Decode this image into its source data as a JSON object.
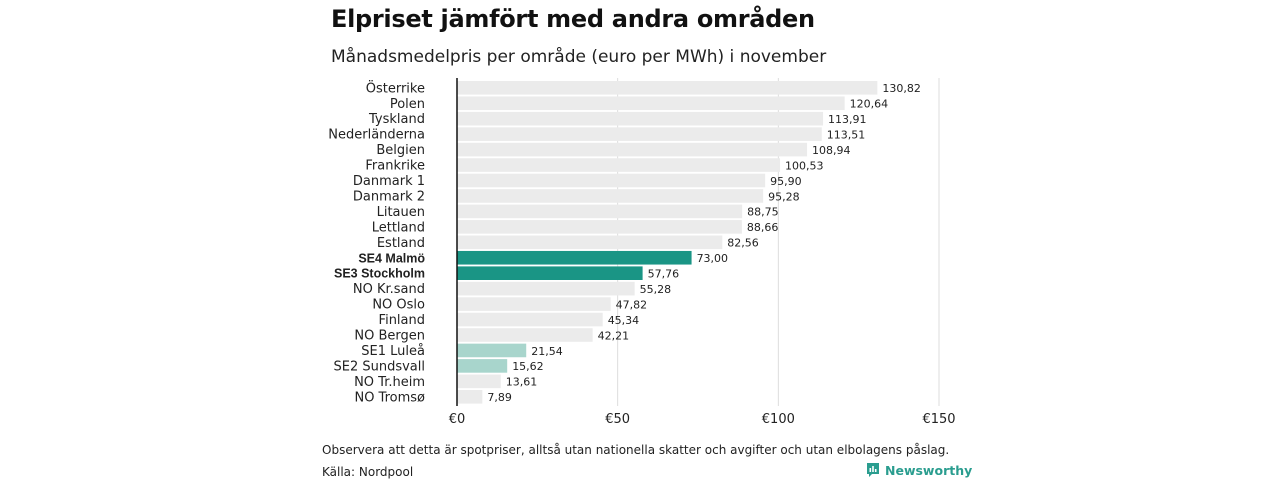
{
  "title": "Elpriset jämfört med andra områden",
  "subtitle": "Månadsmedelpris per område (euro per MWh) i november",
  "footnote": "Observera att detta är spotpriser, alltså utan nationella skatter och avgifter och utan elbolagens påslag.",
  "source": "Källa: Nordpool",
  "brand": {
    "name": "Newsworthy",
    "icon": "newsworthy-logo-icon",
    "color": "#2a9d8f"
  },
  "colors": {
    "default": "#ebebeb",
    "highlight": "#1a9585",
    "light_highlight": "#a8d5cc",
    "gridline": "#dddddd",
    "axis": "#111111"
  },
  "chart_data": {
    "type": "bar",
    "orientation": "horizontal",
    "title": "Elpriset jämfört med andra områden",
    "subtitle": "Månadsmedelpris per område (euro per MWh) i november",
    "xlim": [
      0,
      150
    ],
    "xticks": [
      0,
      50,
      100,
      150
    ],
    "xtick_labels": [
      "€0",
      "€50",
      "€100",
      "€150"
    ],
    "grid": true,
    "categories": [
      "Österrike",
      "Polen",
      "Tyskland",
      "Nederländerna",
      "Belgien",
      "Frankrike",
      "Danmark  1",
      "Danmark  2",
      "Litauen",
      "Lettland",
      "Estland",
      "SE4 Malmö",
      "SE3 Stockholm",
      "NO Kr.sand",
      "NO Oslo",
      "Finland",
      "NO Bergen",
      "SE1  Luleå",
      "SE2  Sundsvall",
      "NO Tr.heim",
      "NO Tromsø"
    ],
    "values": [
      130.82,
      120.64,
      113.91,
      113.51,
      108.94,
      100.53,
      95.9,
      95.28,
      88.75,
      88.66,
      82.56,
      73.0,
      57.76,
      55.28,
      47.82,
      45.34,
      42.21,
      21.54,
      15.62,
      13.61,
      7.89
    ],
    "value_labels": [
      "130,82",
      "120,64",
      "113,91",
      "113,51",
      "108,94",
      "100,53",
      "95,90",
      "95,28",
      "88,75",
      "88,66",
      "82,56",
      "73,00",
      "57,76",
      "55,28",
      "47,82",
      "45,34",
      "42,21",
      "21,54",
      "15,62",
      "13,61",
      "7,89"
    ],
    "highlight": [
      "default",
      "default",
      "default",
      "default",
      "default",
      "default",
      "default",
      "default",
      "default",
      "default",
      "default",
      "highlight",
      "highlight",
      "default",
      "default",
      "default",
      "default",
      "light_highlight",
      "light_highlight",
      "default",
      "default"
    ],
    "bold_labels": [
      "SE4 Malmö",
      "SE3 Stockholm"
    ]
  }
}
